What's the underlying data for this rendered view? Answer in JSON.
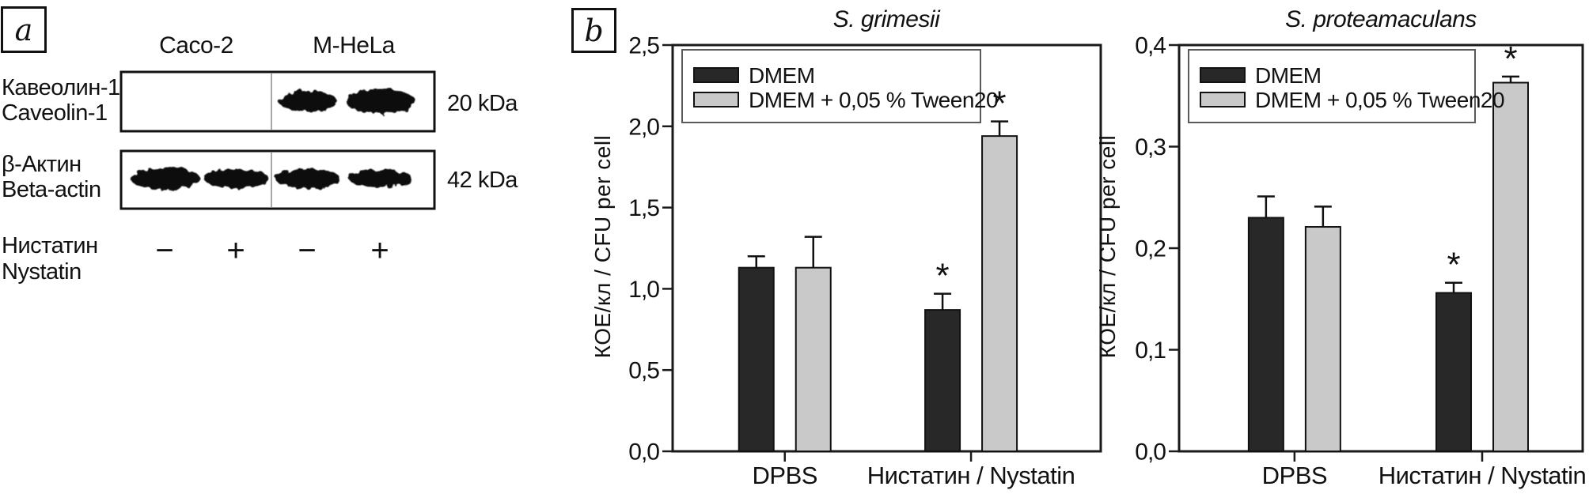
{
  "panel_a": {
    "label": "a",
    "cell_lines": [
      "Caco-2",
      "M-HeLa"
    ],
    "rows": [
      {
        "label_ru": "Кавеолин-1",
        "label_en": "Caveolin-1",
        "weight": "20 kDa",
        "bands": [
          false,
          false,
          true,
          true
        ]
      },
      {
        "label_ru": "β-Актин",
        "label_en": "Beta-actin",
        "weight": "42 kDa",
        "bands": [
          true,
          true,
          true,
          true
        ]
      }
    ],
    "treatment": {
      "ru": "Нистатин",
      "en": "Nystatin",
      "signs": [
        "−",
        "+",
        "−",
        "+"
      ]
    }
  },
  "panel_b": {
    "label": "b"
  },
  "chart_data": [
    {
      "type": "bar",
      "title": "S. grimesii",
      "ylabel": "КОЕ/кл / CFU per cell",
      "categories": [
        "DPBS",
        "Нистатин / Nystatin"
      ],
      "series": [
        {
          "name": "DMEM",
          "color": "#282828",
          "values": [
            1.13,
            0.87
          ],
          "errors": [
            0.07,
            0.1
          ],
          "sig": [
            false,
            true
          ]
        },
        {
          "name": "DMEM + 0,05 % Tween20",
          "color": "#c9c9c9",
          "values": [
            1.13,
            1.94
          ],
          "errors": [
            0.19,
            0.09
          ],
          "sig": [
            false,
            true
          ]
        }
      ],
      "ylim": [
        0,
        2.5
      ],
      "yticks": [
        "0,0",
        "0,5",
        "1,0",
        "1,5",
        "2,0",
        "2,5"
      ],
      "sig_marker": "*",
      "legend_position": "upper left",
      "grid": false
    },
    {
      "type": "bar",
      "title": "S. proteamaculans",
      "ylabel": "КОЕ/кл / CFU per cell",
      "categories": [
        "DPBS",
        "Нистатин / Nystatin"
      ],
      "series": [
        {
          "name": "DMEM",
          "color": "#282828",
          "values": [
            0.23,
            0.156
          ],
          "errors": [
            0.021,
            0.01
          ],
          "sig": [
            false,
            true
          ]
        },
        {
          "name": "DMEM + 0,05 % Tween20",
          "color": "#c9c9c9",
          "values": [
            0.221,
            0.363
          ],
          "errors": [
            0.02,
            0.006
          ],
          "sig": [
            false,
            true
          ]
        }
      ],
      "ylim": [
        0,
        0.4
      ],
      "yticks": [
        "0,0",
        "0,1",
        "0,2",
        "0,3",
        "0,4"
      ],
      "sig_marker": "*",
      "legend_position": "upper left",
      "grid": false
    }
  ]
}
